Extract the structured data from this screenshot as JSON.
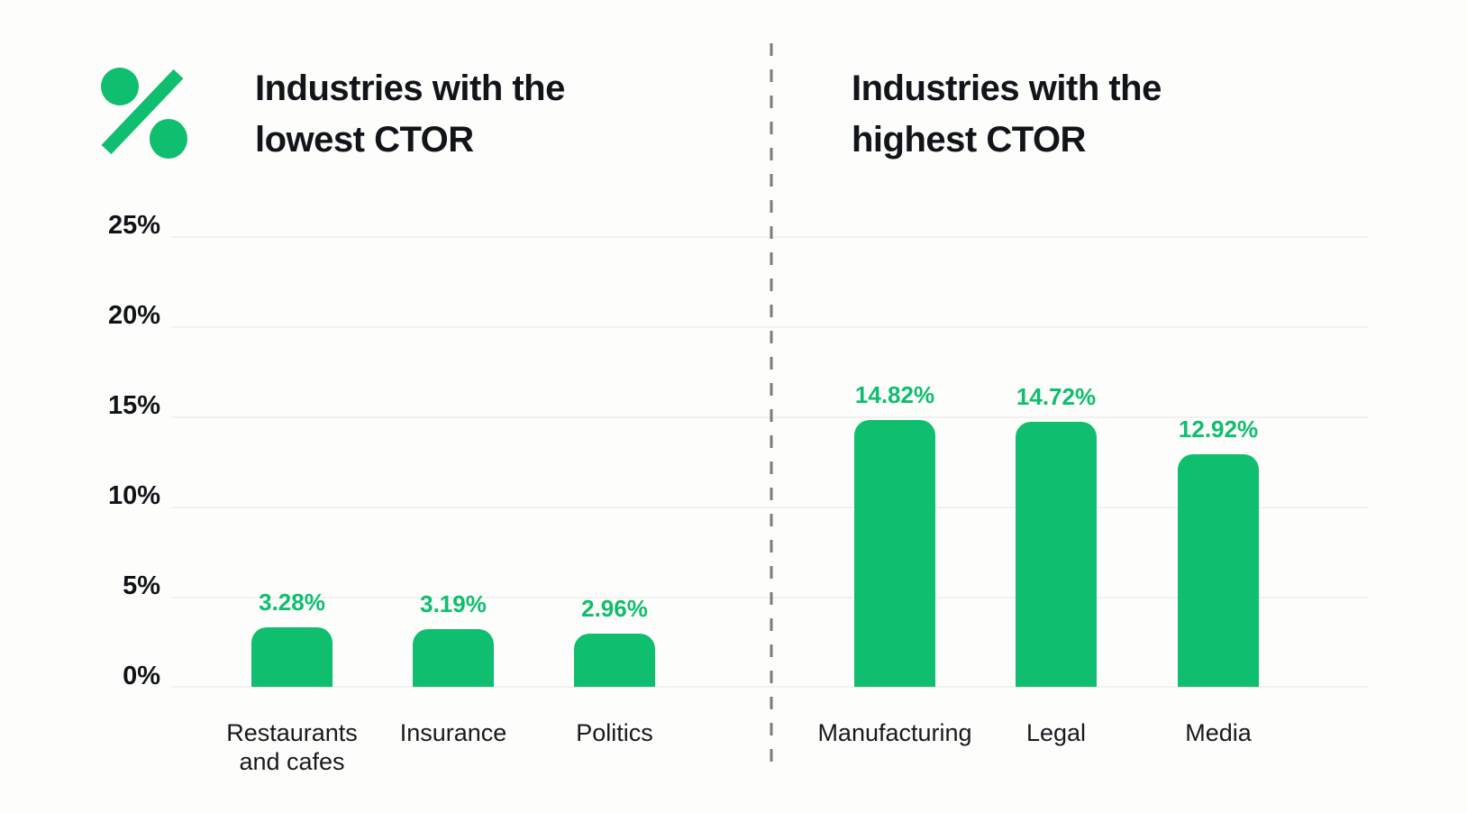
{
  "icon": {
    "name": "percent-icon",
    "color": "#0fbe6e"
  },
  "colors": {
    "background": "#fdfdfb",
    "green": "#0fbe6e",
    "title_text": "#111519",
    "category_text": "#17191d",
    "axis_text": "#101317",
    "gridline": "#f1f1ef",
    "divider": "#7b7b7b"
  },
  "y_axis": {
    "ticks": [
      "25%",
      "20%",
      "15%",
      "10%",
      "5%",
      "0%"
    ]
  },
  "chart_data": [
    {
      "type": "bar",
      "title": "Industries with the lowest CTOR",
      "categories": [
        "Restaurants and cafes",
        "Insurance",
        "Politics"
      ],
      "values": [
        3.28,
        3.19,
        2.96
      ],
      "data_labels": [
        "3.28%",
        "3.19%",
        "2.96%"
      ],
      "bar_color": "#0fbe6e",
      "ylim": [
        0,
        25
      ],
      "ytick_labels": [
        "0%",
        "5%",
        "10%",
        "15%",
        "20%",
        "25%"
      ],
      "xlabel": "",
      "ylabel": "",
      "grid": true,
      "legend": false
    },
    {
      "type": "bar",
      "title": "Industries with the highest CTOR",
      "categories": [
        "Manufacturing",
        "Legal",
        "Media"
      ],
      "values": [
        14.82,
        14.72,
        12.92
      ],
      "data_labels": [
        "14.82%",
        "14.72%",
        "12.92%"
      ],
      "bar_color": "#0fbe6e",
      "ylim": [
        0,
        25
      ],
      "ytick_labels": [
        "0%",
        "5%",
        "10%",
        "15%",
        "20%",
        "25%"
      ],
      "xlabel": "",
      "ylabel": "",
      "grid": true,
      "legend": false
    }
  ]
}
